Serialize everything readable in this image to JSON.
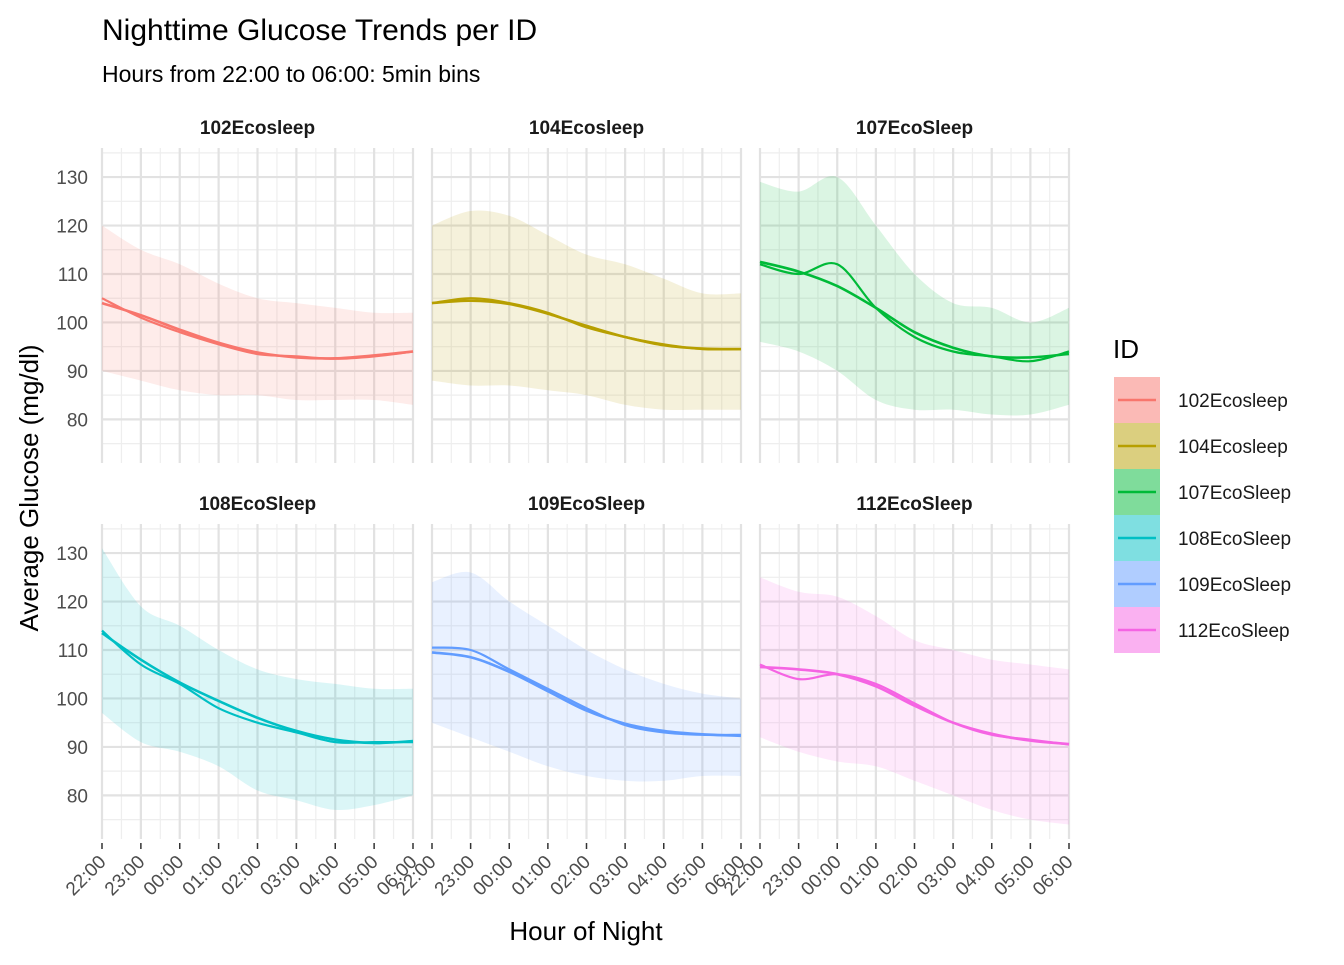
{
  "chart_data": {
    "type": "line",
    "title": "Nighttime Glucose Trends per ID",
    "subtitle": "Hours from 22:00 to 06:00: 5min bins",
    "xlabel": "Hour of Night",
    "ylabel": "Average Glucose (mg/dl)",
    "x_tick_labels": [
      "22:00",
      "23:00",
      "00:00",
      "01:00",
      "02:00",
      "03:00",
      "04:00",
      "05:00",
      "06:00"
    ],
    "x_range_hours": [
      0,
      8
    ],
    "y_ticks": [
      80,
      90,
      100,
      110,
      120,
      130
    ],
    "ylim": [
      71,
      136
    ],
    "grid": true,
    "legend_title": "ID",
    "legend_position": "right",
    "x_hours": [
      0,
      1,
      2,
      3,
      4,
      5,
      6,
      7,
      8
    ],
    "panels": [
      {
        "name": "102Ecosleep",
        "color": "#F8766D",
        "mean": [
          105,
          101,
          98,
          95.5,
          93.5,
          93,
          92.5,
          93,
          94
        ],
        "smooth": [
          104,
          101.5,
          98.5,
          95.8,
          93.8,
          92.8,
          92.6,
          93.2,
          94
        ],
        "upper": [
          120,
          115,
          112,
          108,
          105,
          104,
          103,
          102,
          102
        ],
        "lower": [
          90,
          88,
          86,
          85,
          85,
          84,
          84,
          84,
          83
        ]
      },
      {
        "name": "104Ecosleep",
        "color": "#B79F00",
        "mean": [
          104,
          105,
          104,
          102,
          99,
          97,
          95.5,
          94.5,
          94.5
        ],
        "smooth": [
          104,
          104.5,
          103.8,
          101.8,
          99.3,
          97,
          95.3,
          94.6,
          94.5
        ],
        "upper": [
          120,
          123,
          122,
          118,
          114,
          112,
          109,
          106,
          106
        ],
        "lower": [
          88,
          87,
          87,
          86,
          85,
          83,
          82,
          82,
          82
        ]
      },
      {
        "name": "107EcoSleep",
        "color": "#00BA38",
        "mean": [
          112,
          110,
          112,
          103,
          97,
          94,
          93,
          92,
          94
        ],
        "smooth": [
          112.5,
          110.5,
          107.5,
          103,
          98,
          94.8,
          93,
          92.8,
          93.5
        ],
        "upper": [
          129,
          127,
          130,
          120,
          110,
          104,
          103,
          100,
          103
        ],
        "lower": [
          96,
          94,
          90,
          84,
          82,
          82,
          81,
          81,
          83
        ]
      },
      {
        "name": "108EcoSleep",
        "color": "#00BFC4",
        "mean": [
          114,
          107,
          103,
          98,
          95,
          93,
          91,
          91,
          91
        ],
        "smooth": [
          113.5,
          108,
          103.3,
          99.5,
          96,
          93.3,
          91.5,
          90.8,
          91.2
        ],
        "upper": [
          131,
          119,
          115,
          110,
          106,
          104,
          103,
          102,
          102
        ],
        "lower": [
          97,
          91,
          89,
          86,
          81,
          79,
          77,
          78,
          80
        ]
      },
      {
        "name": "109EcoSleep",
        "color": "#619CFF",
        "mean": [
          110.5,
          110,
          106,
          102,
          98,
          94.5,
          93,
          92.5,
          92.5
        ],
        "smooth": [
          109.5,
          108.5,
          105.5,
          101.5,
          97.5,
          94.8,
          93.3,
          92.6,
          92.3
        ],
        "upper": [
          124,
          126,
          120,
          115,
          110,
          106,
          103,
          101,
          100
        ],
        "lower": [
          95,
          92,
          89,
          86,
          84,
          83,
          83,
          84,
          84
        ]
      },
      {
        "name": "112EcoSleep",
        "color": "#F564E3",
        "mean": [
          107,
          104,
          105,
          103,
          99,
          95,
          92.5,
          91.5,
          90.5
        ],
        "smooth": [
          106.5,
          106,
          105,
          102.5,
          98.5,
          95,
          92.7,
          91.3,
          90.6
        ],
        "upper": [
          125,
          122,
          121,
          117,
          112,
          110,
          108,
          107,
          106
        ],
        "lower": [
          92,
          89,
          87,
          86,
          83,
          80,
          77,
          75,
          74
        ]
      }
    ]
  }
}
